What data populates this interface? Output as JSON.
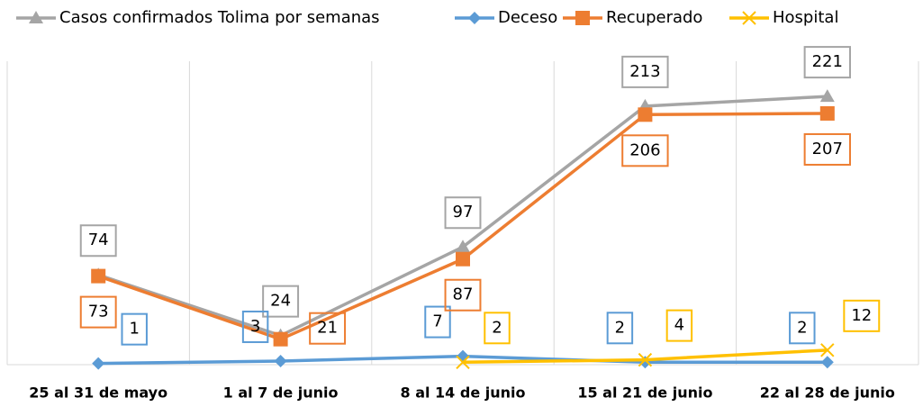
{
  "chart_data": {
    "type": "line",
    "categories": [
      "25 al 31 de mayo",
      "1 al 7 de junio",
      "8 al 14 de junio",
      "15 al 21 de junio",
      "22 al 28 de junio"
    ],
    "series": [
      {
        "name": "Casos confirmados Tolima por semanas",
        "color": "#a5a5a5",
        "marker": "triangle",
        "values": [
          74,
          24,
          97,
          213,
          221
        ]
      },
      {
        "name": "Deceso",
        "color": "#5b9bd5",
        "marker": "diamond",
        "values": [
          1,
          3,
          7,
          2,
          2
        ]
      },
      {
        "name": "Recuperado",
        "color": "#ed7d31",
        "marker": "square",
        "values": [
          73,
          21,
          87,
          206,
          207
        ]
      },
      {
        "name": "Hospital",
        "color": "#ffc000",
        "marker": "x",
        "values": [
          null,
          null,
          2,
          4,
          12
        ]
      }
    ],
    "ylim": [
      0,
      250
    ],
    "grid": true,
    "legend": "top"
  }
}
